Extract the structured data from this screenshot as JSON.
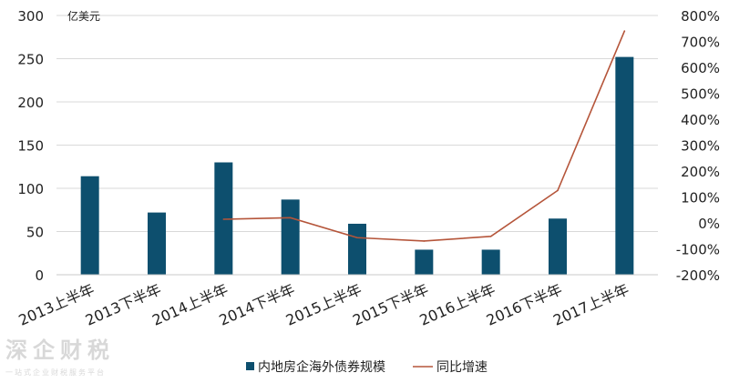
{
  "chart_data": {
    "type": "bar",
    "unit_label": "亿美元",
    "categories": [
      "2013上半年",
      "2013下半年",
      "2014上半年",
      "2014下半年",
      "2015上半年",
      "2015下半年",
      "2016上半年",
      "2016下半年",
      "2017上半年"
    ],
    "series": [
      {
        "name": "内地房企海外债券规模",
        "type": "bar",
        "axis": "left",
        "color": "#0d4f6e",
        "values": [
          114,
          72,
          130,
          87,
          59,
          29,
          29,
          65,
          252
        ]
      },
      {
        "name": "同比增速",
        "type": "line",
        "axis": "right",
        "color": "#b5553a",
        "values": [
          null,
          null,
          14,
          20,
          -57,
          -70,
          -52,
          125,
          740
        ]
      }
    ],
    "left_axis": {
      "ylim": [
        0,
        300
      ],
      "ticks": [
        0,
        50,
        100,
        150,
        200,
        250,
        300
      ],
      "tick_labels": [
        "0",
        "50",
        "100",
        "150",
        "200",
        "250",
        "300"
      ]
    },
    "right_axis": {
      "ylim": [
        -200,
        800
      ],
      "ticks": [
        -200,
        -100,
        0,
        100,
        200,
        300,
        400,
        500,
        600,
        700,
        800
      ],
      "tick_labels": [
        "-200%",
        "-100%",
        "0%",
        "100%",
        "200%",
        "300%",
        "400%",
        "500%",
        "600%",
        "700%",
        "800%"
      ]
    },
    "grid": true,
    "legend_position": "bottom"
  },
  "watermark": {
    "main": "深企财税",
    "sub": "一站式企业财税服务平台"
  }
}
